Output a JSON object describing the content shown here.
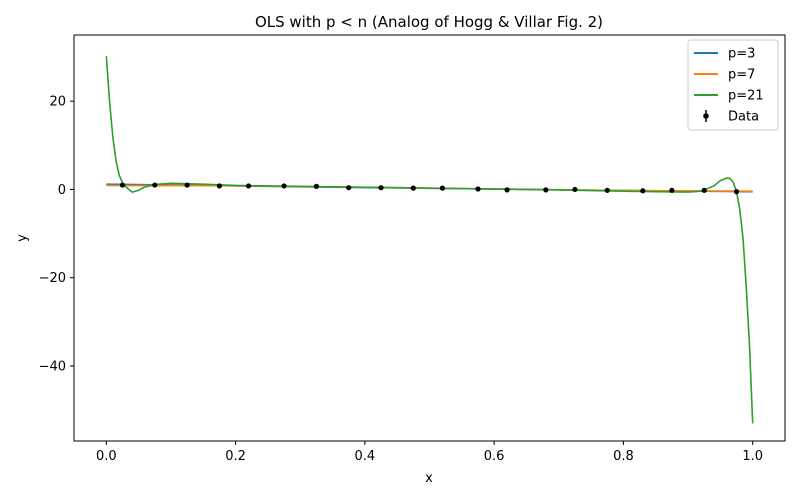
{
  "chart_data": {
    "type": "line",
    "title": "OLS with p < n (Analog of Hogg & Villar Fig. 2)",
    "xlabel": "x",
    "ylabel": "y",
    "xlim": [
      -0.05,
      1.05
    ],
    "ylim": [
      -57,
      35
    ],
    "xticks": [
      0.0,
      0.2,
      0.4,
      0.6,
      0.8,
      1.0
    ],
    "xtick_labels": [
      "0.0",
      "0.2",
      "0.4",
      "0.6",
      "0.8",
      "1.0"
    ],
    "yticks": [
      20,
      0,
      -20,
      -40
    ],
    "ytick_labels": [
      "20",
      "0",
      "−20",
      "−40"
    ],
    "grid": false,
    "legend_position": "top-right",
    "series": [
      {
        "name": "p=3",
        "color": "#1f77b4",
        "x": [
          0.0,
          0.25,
          0.5,
          0.75,
          1.0
        ],
        "y": [
          1.2,
          0.7,
          0.25,
          -0.15,
          -0.5
        ]
      },
      {
        "name": "p=7",
        "color": "#ff7f0e",
        "x": [
          0.0,
          0.2,
          0.4,
          0.6,
          0.8,
          1.0
        ],
        "y": [
          0.9,
          0.85,
          0.5,
          0.1,
          -0.25,
          -0.4
        ]
      },
      {
        "name": "p=21",
        "color": "#2ca02c",
        "x": [
          0.0,
          0.005,
          0.01,
          0.015,
          0.02,
          0.025,
          0.03,
          0.04,
          0.05,
          0.06,
          0.08,
          0.1,
          0.15,
          0.2,
          0.3,
          0.4,
          0.5,
          0.6,
          0.7,
          0.8,
          0.85,
          0.9,
          0.92,
          0.94,
          0.95,
          0.96,
          0.965,
          0.97,
          0.975,
          0.98,
          0.985,
          0.99,
          0.995,
          1.0
        ],
        "y": [
          30.2,
          20,
          12,
          6.5,
          3.2,
          1.5,
          0.6,
          -0.6,
          -0.2,
          0.6,
          1.2,
          1.4,
          1.2,
          0.9,
          0.7,
          0.5,
          0.3,
          0.1,
          -0.1,
          -0.4,
          -0.5,
          -0.6,
          -0.4,
          0.8,
          2.0,
          2.6,
          2.5,
          1.6,
          -0.5,
          -4.5,
          -11,
          -22,
          -35,
          -53
        ]
      }
    ],
    "data_points": {
      "name": "Data",
      "color": "#000000",
      "x": [
        0.025,
        0.075,
        0.125,
        0.175,
        0.22,
        0.275,
        0.325,
        0.375,
        0.425,
        0.475,
        0.52,
        0.575,
        0.62,
        0.68,
        0.725,
        0.775,
        0.83,
        0.875,
        0.925,
        0.975
      ],
      "y": [
        1.0,
        1.0,
        1.0,
        0.8,
        0.8,
        0.8,
        0.7,
        0.4,
        0.4,
        0.3,
        0.3,
        0.1,
        -0.1,
        -0.1,
        0.0,
        -0.2,
        -0.3,
        -0.2,
        -0.2,
        -0.5
      ]
    }
  }
}
